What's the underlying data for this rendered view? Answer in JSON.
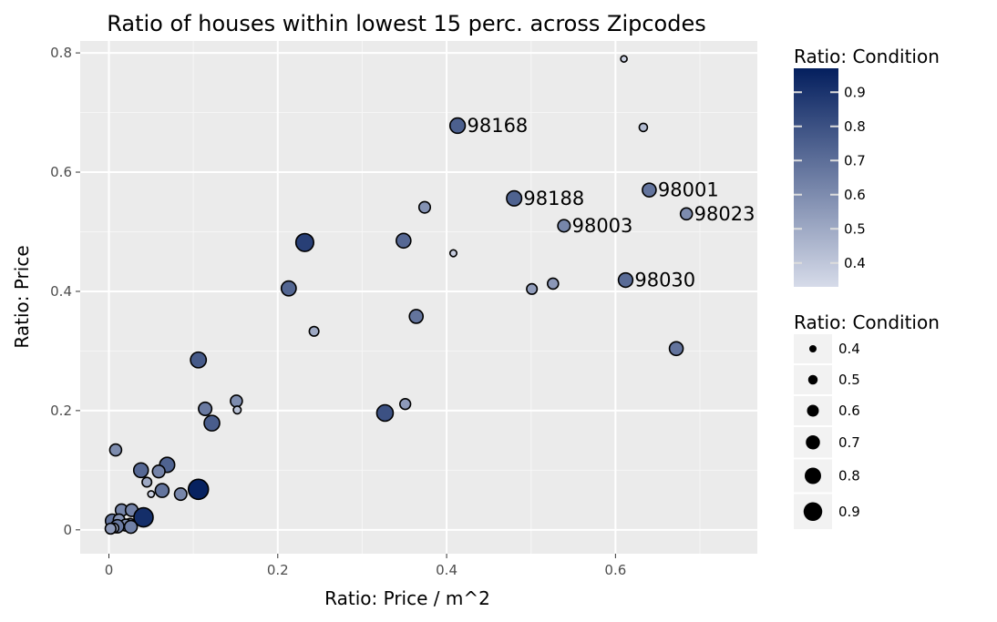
{
  "chart_data": {
    "type": "scatter",
    "title": "Ratio of houses within lowest 15 perc. across Zipcodes",
    "xlabel": "Ratio: Price / m^2",
    "ylabel": "Ratio: Price",
    "xlim": [
      -0.034,
      0.768
    ],
    "ylim": [
      -0.04,
      0.82
    ],
    "x_ticks": [
      0,
      0.2,
      0.4,
      0.6
    ],
    "x_tick_labels": [
      "0",
      "0.2",
      "0.4",
      "0.6"
    ],
    "y_ticks": [
      0,
      0.2,
      0.4,
      0.6,
      0.8
    ],
    "y_tick_labels": [
      "0",
      "0.2",
      "0.4",
      "0.6",
      "0.8"
    ],
    "grid": true,
    "color_scale": {
      "low": "#d6dbe9",
      "high": "#041f5e",
      "domain": [
        0.33,
        0.97
      ]
    },
    "legend_color": {
      "title": "Ratio: Condition",
      "ticks": [
        0.9,
        0.8,
        0.7,
        0.6,
        0.5,
        0.4
      ],
      "tick_labels": [
        "0.9",
        "0.8",
        "0.7",
        "0.6",
        "0.5",
        "0.4"
      ],
      "placement": "right"
    },
    "legend_size": {
      "title": "Ratio: Condition",
      "values": [
        0.4,
        0.5,
        0.6,
        0.7,
        0.8,
        0.9
      ],
      "labels": [
        "0.4",
        "0.5",
        "0.6",
        "0.7",
        "0.8",
        "0.9"
      ],
      "placement": "right"
    },
    "points": [
      {
        "x": 0.61,
        "y": 0.79,
        "condition": 0.36
      },
      {
        "x": 0.633,
        "y": 0.675,
        "condition": 0.44
      },
      {
        "x": 0.413,
        "y": 0.678,
        "condition": 0.75,
        "label": "98168"
      },
      {
        "x": 0.64,
        "y": 0.57,
        "condition": 0.68,
        "label": "98001"
      },
      {
        "x": 0.48,
        "y": 0.556,
        "condition": 0.74,
        "label": "98188"
      },
      {
        "x": 0.684,
        "y": 0.53,
        "condition": 0.6,
        "label": "98023"
      },
      {
        "x": 0.539,
        "y": 0.51,
        "condition": 0.62,
        "label": "98003"
      },
      {
        "x": 0.374,
        "y": 0.541,
        "condition": 0.58
      },
      {
        "x": 0.408,
        "y": 0.464,
        "condition": 0.38
      },
      {
        "x": 0.232,
        "y": 0.482,
        "condition": 0.86
      },
      {
        "x": 0.349,
        "y": 0.485,
        "condition": 0.72
      },
      {
        "x": 0.612,
        "y": 0.419,
        "condition": 0.71,
        "label": "98030"
      },
      {
        "x": 0.501,
        "y": 0.404,
        "condition": 0.54
      },
      {
        "x": 0.526,
        "y": 0.413,
        "condition": 0.56
      },
      {
        "x": 0.213,
        "y": 0.405,
        "condition": 0.73
      },
      {
        "x": 0.364,
        "y": 0.358,
        "condition": 0.68
      },
      {
        "x": 0.243,
        "y": 0.333,
        "condition": 0.5
      },
      {
        "x": 0.672,
        "y": 0.304,
        "condition": 0.68
      },
      {
        "x": 0.106,
        "y": 0.285,
        "condition": 0.77
      },
      {
        "x": 0.151,
        "y": 0.216,
        "condition": 0.6
      },
      {
        "x": 0.152,
        "y": 0.201,
        "condition": 0.42
      },
      {
        "x": 0.114,
        "y": 0.203,
        "condition": 0.66
      },
      {
        "x": 0.122,
        "y": 0.179,
        "condition": 0.76
      },
      {
        "x": 0.351,
        "y": 0.211,
        "condition": 0.55
      },
      {
        "x": 0.327,
        "y": 0.196,
        "condition": 0.8
      },
      {
        "x": 0.008,
        "y": 0.134,
        "condition": 0.6
      },
      {
        "x": 0.069,
        "y": 0.109,
        "condition": 0.74
      },
      {
        "x": 0.038,
        "y": 0.1,
        "condition": 0.72
      },
      {
        "x": 0.059,
        "y": 0.098,
        "condition": 0.63
      },
      {
        "x": 0.045,
        "y": 0.08,
        "condition": 0.5
      },
      {
        "x": 0.05,
        "y": 0.06,
        "condition": 0.37
      },
      {
        "x": 0.063,
        "y": 0.066,
        "condition": 0.68
      },
      {
        "x": 0.085,
        "y": 0.06,
        "condition": 0.62
      },
      {
        "x": 0.106,
        "y": 0.068,
        "condition": 0.96
      },
      {
        "x": 0.015,
        "y": 0.033,
        "condition": 0.62
      },
      {
        "x": 0.027,
        "y": 0.033,
        "condition": 0.63
      },
      {
        "x": 0.041,
        "y": 0.021,
        "condition": 0.92
      },
      {
        "x": 0.004,
        "y": 0.015,
        "condition": 0.68
      },
      {
        "x": 0.012,
        "y": 0.017,
        "condition": 0.58
      },
      {
        "x": 0.025,
        "y": 0.01,
        "condition": 0.56
      },
      {
        "x": 0.02,
        "y": 0.008,
        "condition": 0.6
      },
      {
        "x": 0.026,
        "y": 0.005,
        "condition": 0.64
      },
      {
        "x": 0.01,
        "y": 0.006,
        "condition": 0.66
      },
      {
        "x": 0.006,
        "y": 0.003,
        "condition": 0.5
      },
      {
        "x": 0.002,
        "y": 0.002,
        "condition": 0.55
      }
    ]
  }
}
